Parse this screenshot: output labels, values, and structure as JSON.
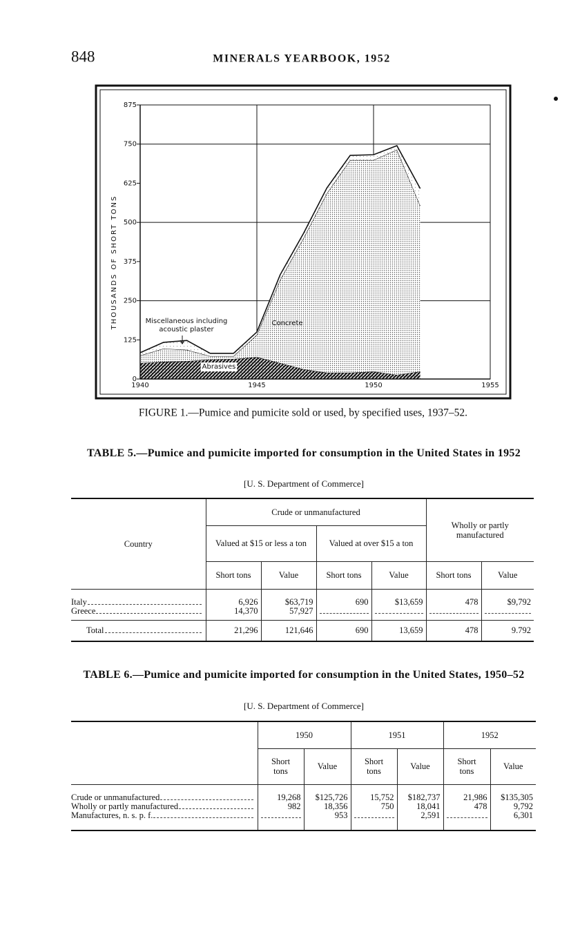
{
  "header": {
    "page": "848",
    "title": "MINERALS YEARBOOK, 1952"
  },
  "chart_data": {
    "type": "area",
    "title": "FIGURE 1.—Pumice and pumicite sold or used, by specified uses, 1937–52.",
    "y_label": "THOUSANDS OF SHORT TONS",
    "x": [
      1940,
      1941,
      1942,
      1943,
      1944,
      1945,
      1946,
      1947,
      1948,
      1949,
      1950,
      1951,
      1952
    ],
    "series": [
      {
        "name": "Abrasives",
        "color": "#1a1a1a",
        "values": [
          51,
          55,
          57,
          62,
          64,
          70,
          51,
          31,
          20,
          20,
          24,
          13,
          24
        ]
      },
      {
        "name": "Concrete",
        "color": "#555555",
        "values": [
          24,
          42,
          36,
          11,
          9,
          71,
          266,
          419,
          573,
          679,
          675,
          719,
          529
        ]
      },
      {
        "name": "Miscellaneous including acoustic plaster",
        "color": "#999999",
        "values": [
          9,
          20,
          30,
          9,
          9,
          9,
          16,
          15,
          17,
          15,
          17,
          13,
          55
        ]
      }
    ],
    "xlim": [
      1940,
      1955
    ],
    "xticks": [
      1940,
      1945,
      1950,
      1955
    ],
    "ylim": [
      0,
      875
    ],
    "yticks": [
      0,
      125,
      250,
      375,
      500,
      625,
      750,
      875
    ],
    "grid": true
  },
  "table5": {
    "title": "TABLE 5.—Pumice and pumicite imported for consumption in the United States in 1952",
    "source": "[U. S. Department of Commerce]",
    "header": {
      "country": "Country",
      "crude": "Crude or unmanufactured",
      "low": "Valued at $15 or less a ton",
      "high": "Valued at over $15 a ton",
      "wholly": "Wholly or partly manufactured",
      "columns": [
        "Short tons",
        "Value",
        "Short tons",
        "Value",
        "Short tons",
        "Value"
      ]
    },
    "rows": [
      {
        "label": "Italy",
        "cells": [
          "6,926",
          "$63,719",
          "690",
          "$13,659",
          "478",
          "$9,792"
        ]
      },
      {
        "label": "Greece",
        "cells": [
          "14,370",
          "57,927",
          null,
          null,
          null,
          null
        ]
      }
    ],
    "total": {
      "label": "Total",
      "cells": [
        "21,296",
        "121,646",
        "690",
        "13,659",
        "478",
        "9.792"
      ]
    }
  },
  "table6": {
    "title": "TABLE 6.—Pumice and pumicite imported for consumption in the United States, 1950–52",
    "source": "[U. S. Department of Commerce]",
    "header": {
      "years": [
        "1950",
        "1951",
        "1952"
      ],
      "columns": [
        "Short tons",
        "Value",
        "Short tons",
        "Value",
        "Short tons",
        "Value"
      ]
    },
    "rows": [
      {
        "label": "Crude or unmanufactured",
        "cells": [
          "19,268",
          "$125,726",
          "15,752",
          "$182,737",
          "21,986",
          "$135,305"
        ]
      },
      {
        "label": "Wholly or partly manufactured",
        "cells": [
          "982",
          "18,356",
          "750",
          "18,041",
          "478",
          "9,792"
        ]
      },
      {
        "label": "Manufactures, n. s. p. f.",
        "cells": [
          null,
          "953",
          null,
          "2,591",
          null,
          "6,301"
        ]
      }
    ]
  }
}
